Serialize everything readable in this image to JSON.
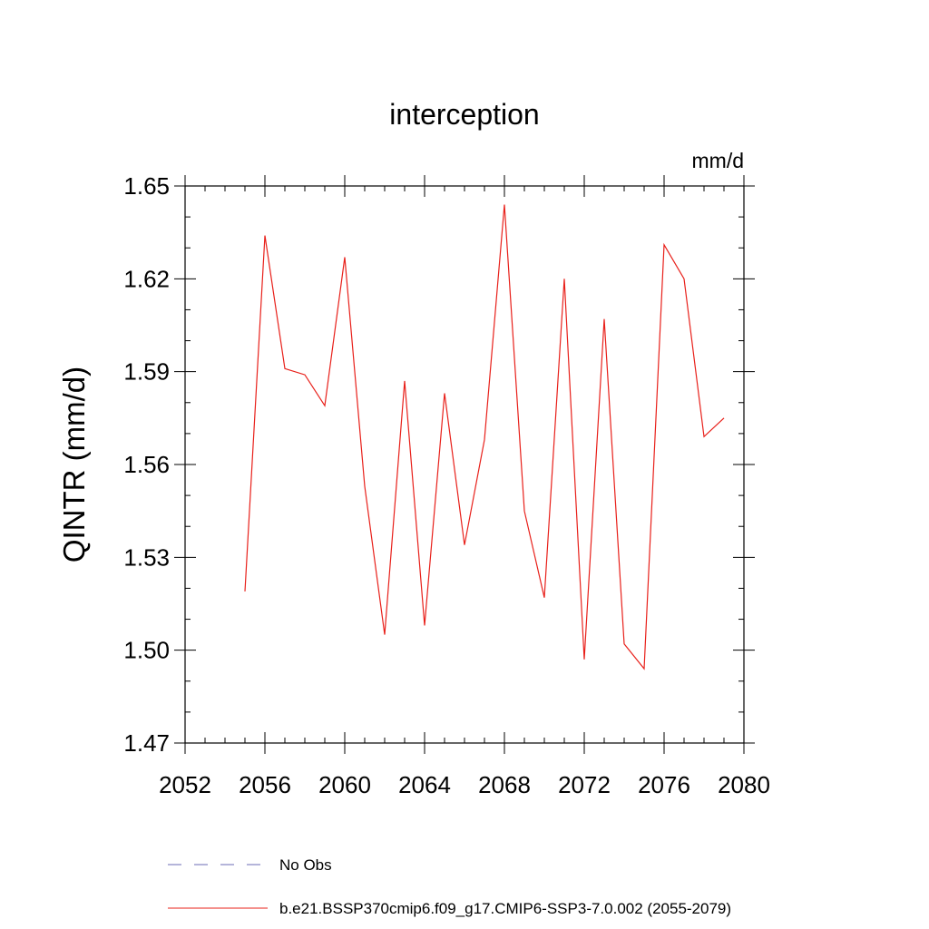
{
  "chart_data": {
    "type": "line",
    "title": "interception",
    "units_label": "mm/d",
    "ylabel": "QINTR  (mm/d)",
    "xlabel": "",
    "xlim": [
      2052,
      2080
    ],
    "ylim": [
      1.47,
      1.65
    ],
    "x_ticks": [
      2052,
      2056,
      2060,
      2064,
      2068,
      2072,
      2076,
      2080
    ],
    "x_tick_labels": [
      "2052",
      "2056",
      "2060",
      "2064",
      "2068",
      "2072",
      "2076",
      "2080"
    ],
    "y_ticks": [
      1.47,
      1.5,
      1.53,
      1.56,
      1.59,
      1.62,
      1.65
    ],
    "y_tick_labels": [
      "1.47",
      "1.50",
      "1.53",
      "1.56",
      "1.59",
      "1.62",
      "1.65"
    ],
    "grid": false,
    "legend_position": "bottom",
    "series": [
      {
        "name": "b.e21.BSSP370cmip6.f09_g17.CMIP6-SSP3-7.0.002 (2055-2079)",
        "color": "#e8201a",
        "dash": "solid",
        "x": [
          2055,
          2056,
          2057,
          2058,
          2059,
          2060,
          2061,
          2062,
          2063,
          2064,
          2065,
          2066,
          2067,
          2068,
          2069,
          2070,
          2071,
          2072,
          2073,
          2074,
          2075,
          2076,
          2077,
          2078,
          2079
        ],
        "y": [
          1.519,
          1.634,
          1.591,
          1.589,
          1.579,
          1.627,
          1.553,
          1.505,
          1.587,
          1.508,
          1.583,
          1.534,
          1.568,
          1.644,
          1.545,
          1.517,
          1.62,
          1.497,
          1.607,
          1.502,
          1.494,
          1.631,
          1.62,
          1.569,
          1.575
        ]
      }
    ],
    "legend": [
      {
        "label": "No Obs",
        "color": "#6b6bb5",
        "dash": "dashed"
      },
      {
        "label": "b.e21.BSSP370cmip6.f09_g17.CMIP6-SSP3-7.0.002 (2055-2079)",
        "color": "#e8201a",
        "dash": "solid"
      }
    ]
  }
}
